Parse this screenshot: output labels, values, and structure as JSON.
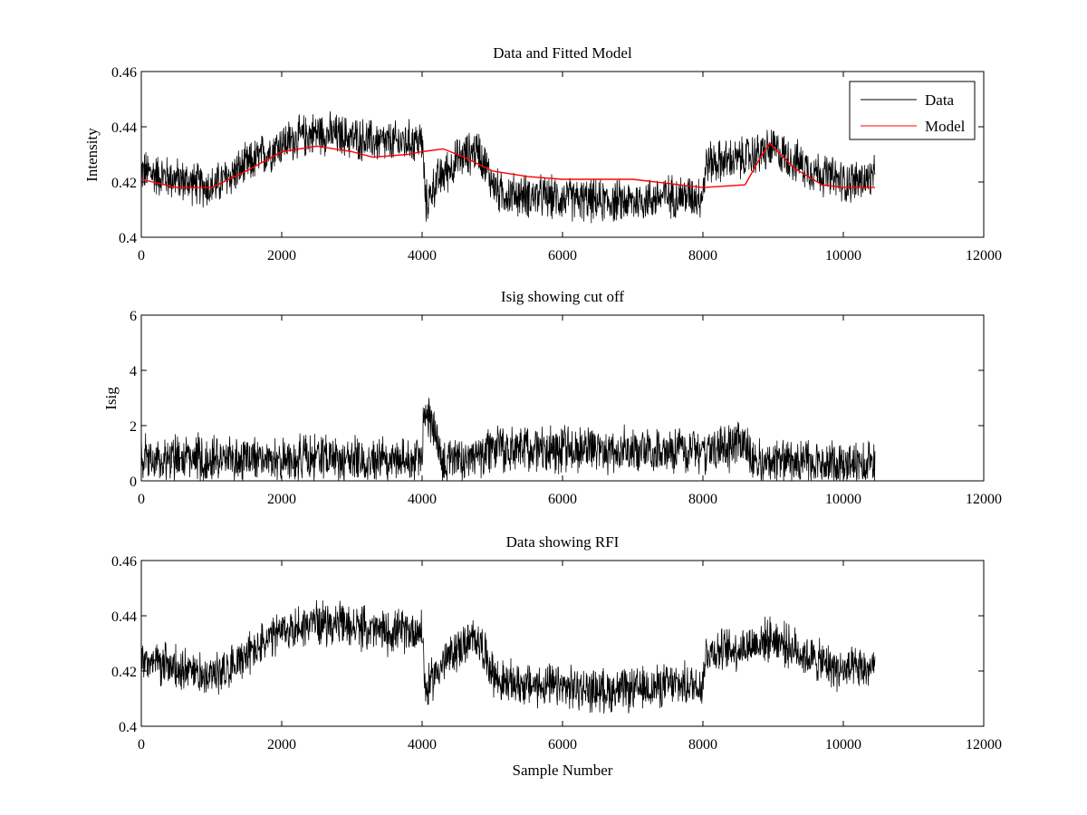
{
  "chart_data": [
    {
      "type": "line",
      "title": "Data and Fitted Model",
      "xlabel": "",
      "ylabel": "Intensity",
      "xlim": [
        0,
        12000
      ],
      "ylim": [
        0.4,
        0.46
      ],
      "xticks": [
        "0",
        "2000",
        "4000",
        "6000",
        "8000",
        "10000",
        "12000"
      ],
      "yticks": [
        "0.4",
        "0.42",
        "0.44",
        "0.46"
      ],
      "legend": {
        "placement": "top-right",
        "entries": [
          "Data",
          "Model"
        ]
      },
      "series": [
        {
          "name": "Data",
          "color": "#000000",
          "x": [
            0,
            500,
            1000,
            1500,
            2000,
            2500,
            3000,
            3500,
            4000,
            4050,
            4200,
            4500,
            4800,
            5000,
            5100,
            5500,
            6000,
            6500,
            7000,
            7500,
            7990,
            8050,
            8500,
            9000,
            9500,
            10000,
            10450
          ],
          "y": [
            0.424,
            0.421,
            0.418,
            0.426,
            0.434,
            0.438,
            0.436,
            0.434,
            0.435,
            0.412,
            0.42,
            0.428,
            0.432,
            0.42,
            0.416,
            0.415,
            0.414,
            0.413,
            0.413,
            0.415,
            0.415,
            0.427,
            0.428,
            0.432,
            0.425,
            0.42,
            0.421
          ]
        },
        {
          "name": "Model",
          "color": "#ff0000",
          "x": [
            0,
            500,
            1000,
            1500,
            2000,
            2500,
            3000,
            3300,
            3800,
            4000,
            4300,
            4600,
            5000,
            5500,
            6000,
            7000,
            8000,
            8600,
            8800,
            8950,
            9300,
            9700,
            10000,
            10450
          ],
          "y": [
            0.421,
            0.418,
            0.418,
            0.424,
            0.431,
            0.433,
            0.431,
            0.429,
            0.43,
            0.431,
            0.432,
            0.429,
            0.424,
            0.422,
            0.421,
            0.421,
            0.418,
            0.419,
            0.428,
            0.434,
            0.425,
            0.419,
            0.418,
            0.418
          ]
        }
      ]
    },
    {
      "type": "line",
      "title": "Isig showing cut off",
      "xlabel": "",
      "ylabel": "Isig",
      "xlim": [
        0,
        12000
      ],
      "ylim": [
        0,
        6
      ],
      "xticks": [
        "0",
        "2000",
        "4000",
        "6000",
        "8000",
        "10000",
        "12000"
      ],
      "yticks": [
        "0",
        "2",
        "4",
        "6"
      ],
      "series": [
        {
          "color": "#000000",
          "x": [
            0,
            1000,
            2000,
            3000,
            4000,
            4020,
            4100,
            4200,
            4300,
            4400,
            5000,
            5500,
            6000,
            7000,
            8000,
            8600,
            8700,
            9500,
            10450
          ],
          "y": [
            0.8,
            0.8,
            0.8,
            0.8,
            0.8,
            2.6,
            2.4,
            1.6,
            0.5,
            0.7,
            1.1,
            1.2,
            1.1,
            1.1,
            1.1,
            1.3,
            0.6,
            0.6,
            0.6
          ]
        }
      ]
    },
    {
      "type": "line",
      "title": "Data showing RFI",
      "xlabel": "Sample Number",
      "ylabel": "",
      "xlim": [
        0,
        12000
      ],
      "ylim": [
        0.4,
        0.46
      ],
      "xticks": [
        "0",
        "2000",
        "4000",
        "6000",
        "8000",
        "10000",
        "12000"
      ],
      "yticks": [
        "0.4",
        "0.42",
        "0.44",
        "0.46"
      ],
      "series": [
        {
          "color": "#000000",
          "x": [
            0,
            500,
            1000,
            1500,
            2000,
            2500,
            3000,
            3500,
            4000,
            4050,
            4200,
            4500,
            4800,
            5000,
            5100,
            5500,
            6000,
            6500,
            7000,
            7500,
            7990,
            8050,
            8500,
            9000,
            9500,
            10000,
            10450
          ],
          "y": [
            0.424,
            0.421,
            0.418,
            0.426,
            0.434,
            0.438,
            0.436,
            0.434,
            0.435,
            0.412,
            0.42,
            0.428,
            0.432,
            0.42,
            0.416,
            0.415,
            0.414,
            0.413,
            0.413,
            0.415,
            0.415,
            0.427,
            0.428,
            0.432,
            0.425,
            0.42,
            0.421
          ]
        }
      ]
    }
  ]
}
